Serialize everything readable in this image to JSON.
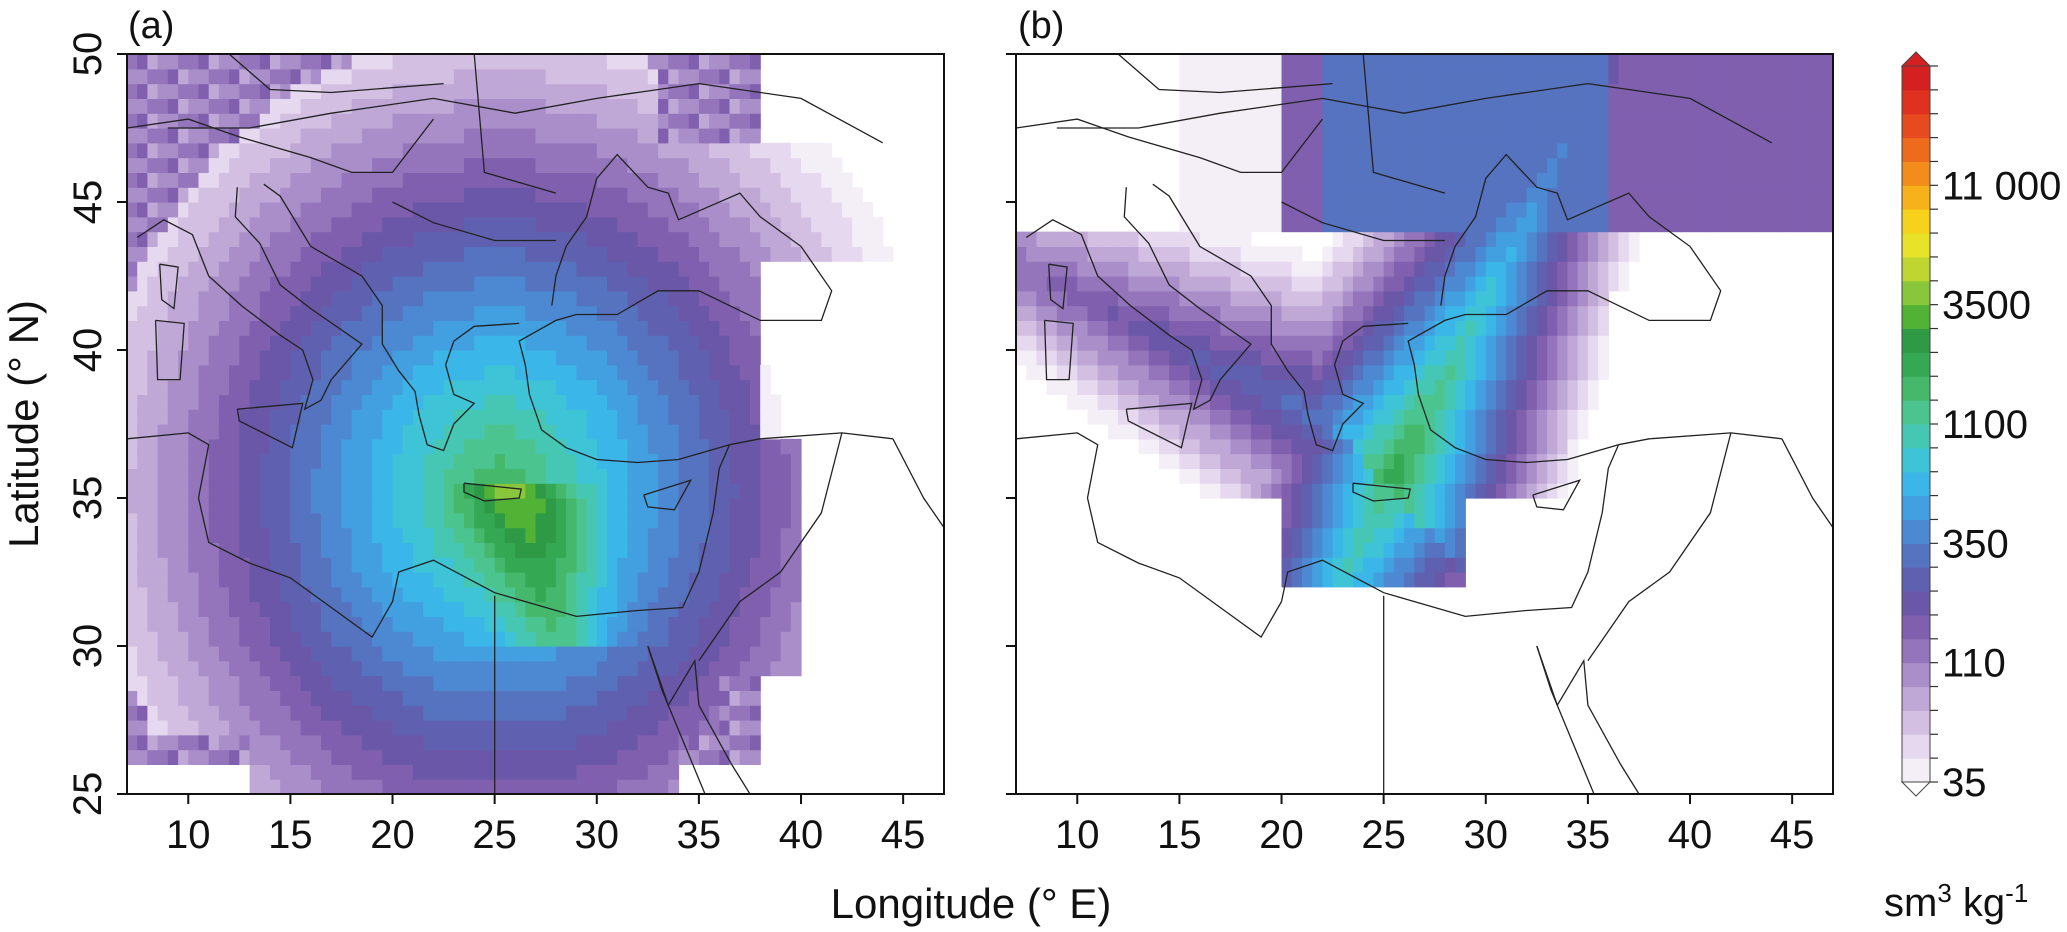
{
  "chart_data": [
    {
      "type": "heatmap",
      "panel_label": "(a)",
      "xlabel": "Longitude (° E)",
      "ylabel": "Latitude (° N)",
      "xlim": [
        7,
        47
      ],
      "ylim": [
        25,
        50
      ],
      "xticks": [
        10,
        15,
        20,
        25,
        30,
        35,
        40,
        45
      ],
      "yticks": [
        25,
        30,
        35,
        40,
        45,
        50
      ],
      "source": {
        "lon": 25.2,
        "lat": 35.3
      },
      "plume": {
        "core": [
          {
            "lon": 24.8,
            "lat": 35.4,
            "level": 15
          },
          {
            "lon": 25.7,
            "lat": 34.6,
            "level": 14
          },
          {
            "lon": 26.5,
            "lat": 33.4,
            "level": 12
          }
        ],
        "extent": {
          "lon": [
            7,
            47
          ],
          "lat": [
            25.5,
            50
          ]
        }
      }
    },
    {
      "type": "heatmap",
      "panel_label": "(b)",
      "xlabel": "Longitude (° E)",
      "xlim": [
        7,
        47
      ],
      "ylim": [
        25,
        50
      ],
      "xticks": [
        10,
        15,
        20,
        25,
        30,
        35,
        40,
        45
      ],
      "yticks": [
        25,
        30,
        35,
        40,
        45,
        50
      ],
      "source": {
        "lon": 25.2,
        "lat": 35.3
      },
      "plume": {
        "core": [
          {
            "lon": 25.0,
            "lat": 35.8,
            "level": 15
          },
          {
            "lon": 26.5,
            "lat": 38.5,
            "level": 10
          },
          {
            "lon": 29.5,
            "lat": 41.5,
            "level": 8
          }
        ],
        "extent": {
          "lon": [
            7,
            47
          ],
          "lat": [
            31.5,
            50
          ]
        }
      }
    }
  ],
  "colorbar": {
    "labels": [
      "35",
      "110",
      "350",
      "1100",
      "3500",
      "11 000"
    ],
    "unit": "sm3 kg-1",
    "colors": [
      "#f4eef7",
      "#e6d8ee",
      "#d3bfe2",
      "#bfa7d6",
      "#aa8ec9",
      "#9475bb",
      "#7f5fae",
      "#6b57a8",
      "#5f60b0",
      "#5673c0",
      "#4d89d2",
      "#43a0e0",
      "#3bb6e8",
      "#3ec4d6",
      "#46c7b4",
      "#4cc490",
      "#45b86c",
      "#34a853",
      "#2e9a45",
      "#51b236",
      "#8ac63b",
      "#bfd631",
      "#e8e228",
      "#f6d21c",
      "#f7b11b",
      "#f28d1c",
      "#ee6a1d",
      "#e84a1f",
      "#df3020",
      "#d42020"
    ]
  }
}
